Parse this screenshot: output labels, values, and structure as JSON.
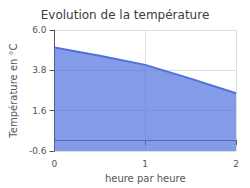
{
  "chart_data": {
    "type": "area",
    "title": "Evolution de la température",
    "xlabel": "heure par heure",
    "ylabel": "Température en °C",
    "x": [
      0,
      0.5,
      1.0,
      1.5,
      2.0
    ],
    "values": [
      5.05,
      4.6,
      4.1,
      3.35,
      2.55
    ],
    "xlim": [
      0,
      2.0
    ],
    "xticks": [
      0,
      1,
      2
    ],
    "ylim": [
      -0.6,
      6.0
    ],
    "yticks": [
      -0.6,
      1.6,
      3.8,
      {
        "value": 6.0,
        "label": "6.0"
      }
    ],
    "grid": true
  }
}
